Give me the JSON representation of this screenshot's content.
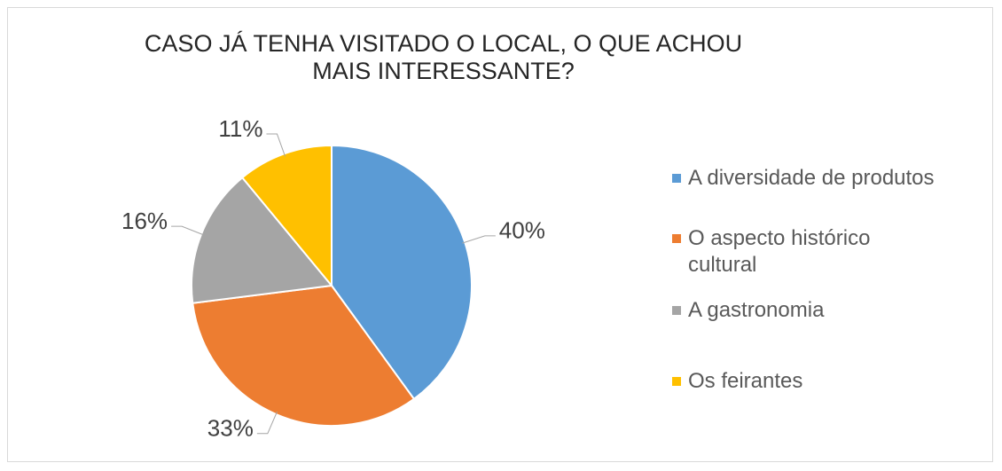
{
  "chart_data": {
    "type": "pie",
    "title": "CASO JÁ TENHA VISITADO O LOCAL, O QUE ACHOU MAIS INTERESSANTE?",
    "categories": [
      "A diversidade de produtos",
      "O aspecto histórico cultural",
      "A gastronomia",
      "Os feirantes"
    ],
    "values": [
      40,
      33,
      16,
      11
    ],
    "value_labels": [
      "40%",
      "33%",
      "16%",
      "11%"
    ],
    "colors": [
      "#5b9bd5",
      "#ed7d31",
      "#a5a5a5",
      "#ffc000"
    ],
    "legend": "right"
  }
}
